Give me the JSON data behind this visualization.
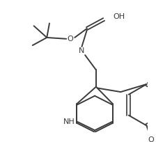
{
  "background_color": "#ffffff",
  "line_color": "#3a3a3a",
  "line_width": 1.4,
  "text_color": "#3a3a3a",
  "font_size": 8.0,
  "xlim": [
    0,
    224
  ],
  "ylim": [
    0,
    204
  ]
}
